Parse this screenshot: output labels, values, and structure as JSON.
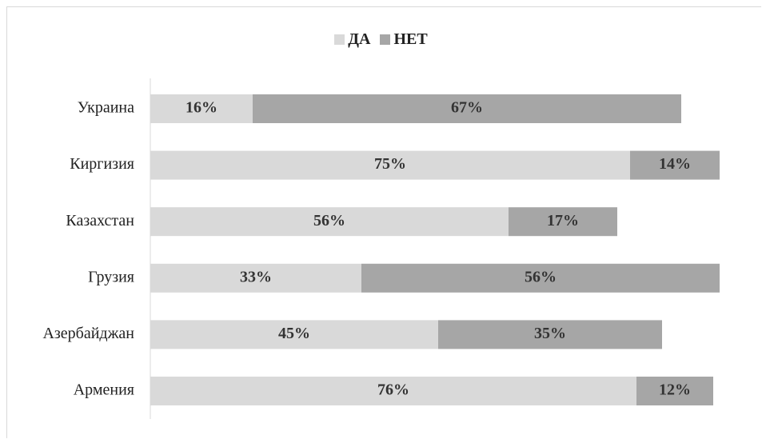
{
  "chart_data": {
    "type": "bar",
    "orientation": "horizontal",
    "stacked": true,
    "categories": [
      "Армения",
      "Азербайджан",
      "Грузия",
      "Казахстан",
      "Киргизия",
      "Украина"
    ],
    "series": [
      {
        "name": "ДА",
        "color": "#d9d9d9",
        "values": [
          76,
          45,
          33,
          56,
          75,
          16
        ],
        "labels": [
          "76%",
          "45%",
          "33%",
          "56%",
          "75%",
          "16%"
        ]
      },
      {
        "name": "НЕТ",
        "color": "#a6a6a6",
        "values": [
          12,
          35,
          56,
          17,
          14,
          67
        ],
        "labels": [
          "12%",
          "35%",
          "56%",
          "17%",
          "14%",
          "67%"
        ]
      }
    ],
    "xlim": [
      0,
      90
    ],
    "grid": false,
    "legend_position": "top"
  }
}
